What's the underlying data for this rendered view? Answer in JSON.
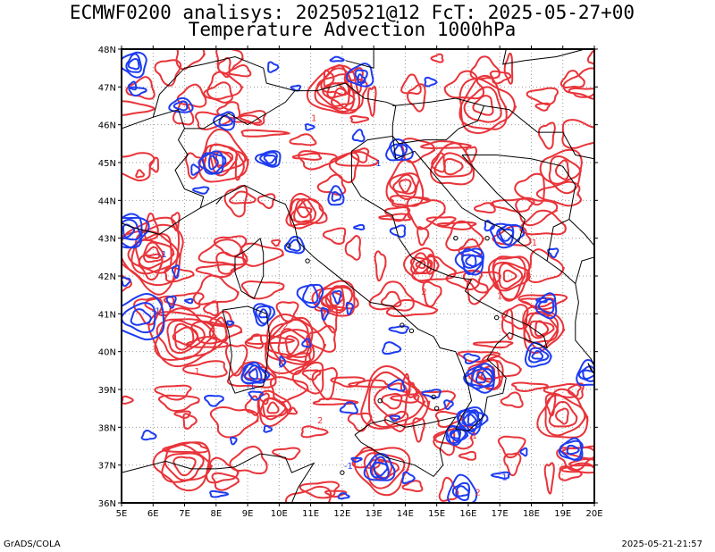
{
  "title_line1": "ECMWF0200 analisys: 20250521@12 FcT: 2025-05-27+00",
  "title_line2": "Temperature Advection 1000hPa",
  "footer_left": "GrADS/COLA",
  "footer_right": "2025-05-21-21:57",
  "lon_labels": [
    "5E",
    "6E",
    "7E",
    "8E",
    "9E",
    "10E",
    "11E",
    "12E",
    "13E",
    "14E",
    "15E",
    "16E",
    "17E",
    "18E",
    "19E",
    "20E"
  ],
  "lat_labels": [
    "48N",
    "47N",
    "46N",
    "45N",
    "44N",
    "43N",
    "42N",
    "41N",
    "40N",
    "39N",
    "38N",
    "37N",
    "36N"
  ],
  "extent": {
    "lon_min": 5,
    "lon_max": 20,
    "lat_min": 36,
    "lat_max": 48
  },
  "colors": {
    "warm_advection": "#e8343a",
    "cold_advection": "#1e3cf0",
    "coastline": "#000000",
    "grid": "#9a9a9a"
  },
  "contour_labels": [
    "-1",
    "1",
    "2",
    "1",
    "-1",
    "2",
    "1",
    "-1",
    "-1",
    "1",
    "2",
    "-1",
    "2",
    "1",
    "-1"
  ]
}
